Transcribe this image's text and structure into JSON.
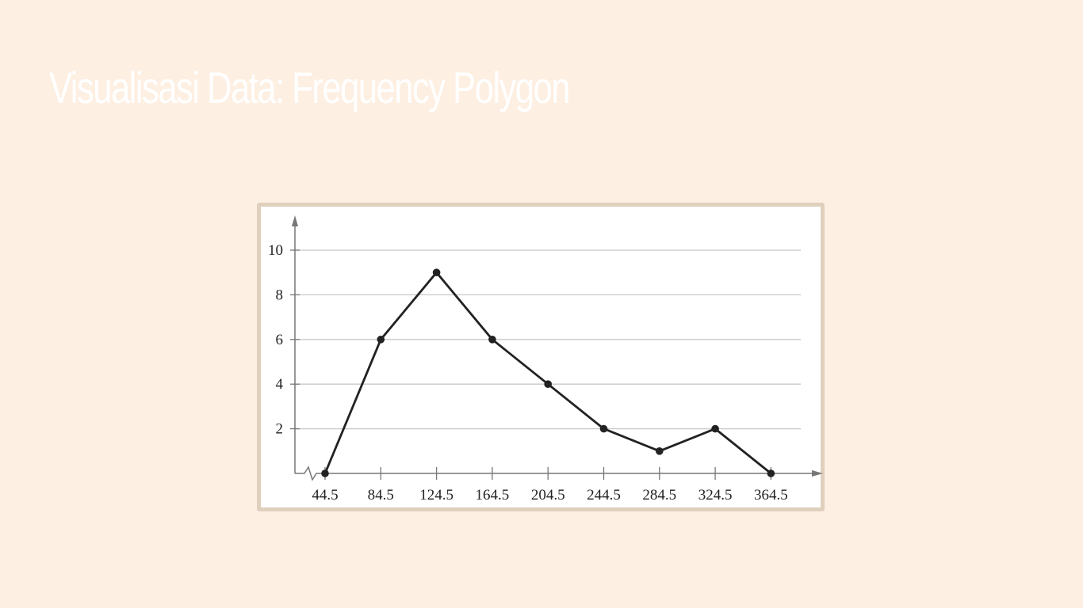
{
  "slide": {
    "title": "Visualisasi Data: Frequency Polygon"
  },
  "colors": {
    "background": "#fdefe2",
    "title": "#ffffff",
    "frame_border": "#dfcfbd",
    "line": "#222222",
    "grid": "#c8c8c8",
    "axis": "#777777"
  },
  "chart_data": {
    "type": "line",
    "title": "",
    "xlabel": "",
    "ylabel": "",
    "x": [
      44.5,
      84.5,
      124.5,
      164.5,
      204.5,
      244.5,
      284.5,
      324.5,
      364.5
    ],
    "x_tick_labels": [
      "44.5",
      "84.5",
      "124.5",
      "164.5",
      "204.5",
      "244.5",
      "284.5",
      "324.5",
      "364.5"
    ],
    "series": [
      {
        "values": [
          0,
          6,
          9,
          6,
          4,
          2,
          1,
          2,
          0
        ]
      }
    ],
    "y_ticks": [
      2,
      4,
      6,
      8,
      10
    ],
    "y_tick_labels": [
      "2",
      "4",
      "6",
      "8",
      "10"
    ],
    "ylim": [
      0,
      11
    ],
    "xlim": [
      24.5,
      384.5
    ],
    "grid": true,
    "markers": true,
    "legend": "none",
    "x_axis_break": true
  }
}
